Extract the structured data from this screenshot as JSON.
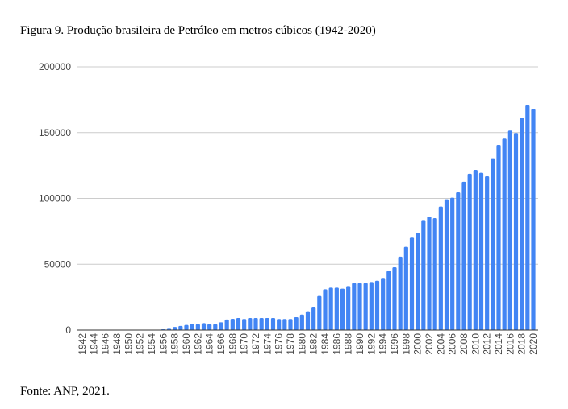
{
  "title": "Figura 9. Produção brasileira de Petróleo em metros cúbicos (1942-2020)",
  "source": "Fonte: ANP, 2021.",
  "chart_data": {
    "type": "bar",
    "title": "Figura 9. Produção brasileira de Petróleo em metros cúbicos (1942-2020)",
    "xlabel": "",
    "ylabel": "",
    "ylim": [
      0,
      200000
    ],
    "yticks": [
      "0",
      "50000",
      "100000",
      "150000",
      "200000"
    ],
    "grid": true,
    "color": "#4285f4",
    "categories": [
      1942,
      1943,
      1944,
      1945,
      1946,
      1947,
      1948,
      1949,
      1950,
      1951,
      1952,
      1953,
      1954,
      1955,
      1956,
      1957,
      1958,
      1959,
      1960,
      1961,
      1962,
      1963,
      1964,
      1965,
      1966,
      1967,
      1968,
      1969,
      1970,
      1971,
      1972,
      1973,
      1974,
      1975,
      1976,
      1977,
      1978,
      1979,
      1980,
      1981,
      1982,
      1983,
      1984,
      1985,
      1986,
      1987,
      1988,
      1989,
      1990,
      1991,
      1992,
      1993,
      1994,
      1995,
      1996,
      1997,
      1998,
      1999,
      2000,
      2001,
      2002,
      2003,
      2004,
      2005,
      2006,
      2007,
      2008,
      2009,
      2010,
      2011,
      2012,
      2013,
      2014,
      2015,
      2016,
      2017,
      2018,
      2019,
      2020
    ],
    "values": [
      0,
      0,
      0,
      0,
      0,
      0,
      0,
      0,
      0,
      0,
      0,
      0,
      100,
      300,
      600,
      1000,
      2400,
      3100,
      3900,
      4500,
      4500,
      5300,
      4500,
      4500,
      5900,
      8000,
      8600,
      9200,
      8400,
      9200,
      9200,
      9200,
      9200,
      9200,
      8400,
      8400,
      8400,
      9800,
      11800,
      14300,
      17700,
      25900,
      31000,
      32200,
      32200,
      31400,
      33400,
      35700,
      35700,
      35700,
      36500,
      37500,
      39600,
      44900,
      47700,
      55700,
      63200,
      70800,
      74000,
      83600,
      86200,
      85000,
      93800,
      99300,
      100500,
      104600,
      112600,
      118700,
      121700,
      119500,
      116800,
      130500,
      140700,
      145400,
      151500,
      149700,
      161100,
      170700,
      167800
    ]
  }
}
